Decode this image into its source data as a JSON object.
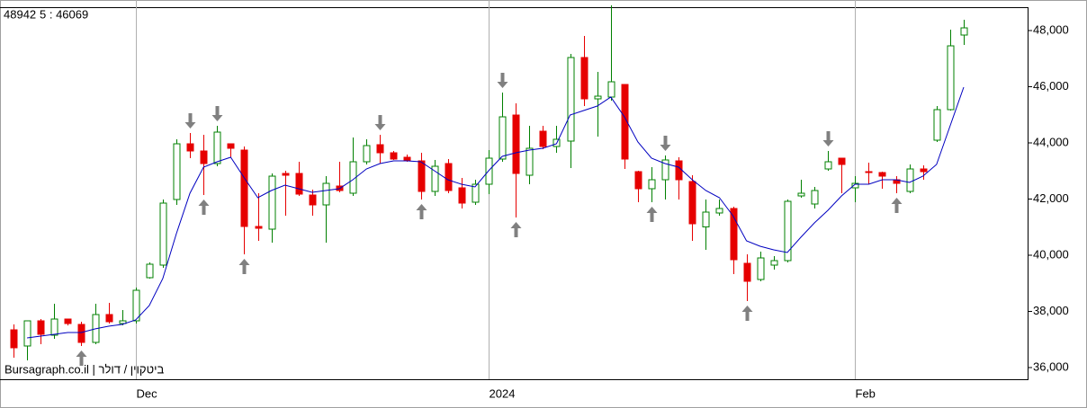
{
  "chart_data": {
    "type": "candlestick",
    "info_left": "48942",
    "ma_label": "5 : 46069",
    "footer": "Bursagraph.co.il | ביטקוין / דולר",
    "categories": [
      null,
      null,
      null,
      null,
      null,
      null,
      null,
      null,
      null,
      "Dec",
      null,
      null,
      null,
      null,
      null,
      null,
      null,
      null,
      null,
      null,
      null,
      null,
      null,
      null,
      null,
      null,
      null,
      null,
      null,
      null,
      null,
      null,
      null,
      null,
      null,
      "2024",
      null,
      null,
      null,
      null,
      null,
      null,
      null,
      null,
      null,
      null,
      null,
      null,
      null,
      null,
      null,
      null,
      null,
      null,
      null,
      null,
      null,
      null,
      null,
      null,
      null,
      null,
      "Feb",
      null,
      null,
      null,
      null,
      null,
      null,
      null,
      null
    ],
    "open": [
      37344,
      36768,
      37664,
      37152,
      37728,
      37536,
      36896,
      37888,
      37568,
      37664,
      39200,
      39648,
      41984,
      43968,
      43712,
      43264,
      43968,
      43744,
      41024,
      40928,
      42912,
      42912,
      42144,
      41792,
      42464,
      42208,
      43328,
      43936,
      43648,
      43488,
      43360,
      42272,
      43264,
      42400,
      41888,
      42528,
      43424,
      44992,
      42848,
      44416,
      43872,
      44064,
      47040,
      45568,
      45632,
      46080,
      42976,
      42368,
      42688,
      43360,
      42624,
      41008,
      41504,
      41664,
      39712,
      39136,
      39648,
      39808,
      42112,
      41824,
      43072,
      43456,
      42400,
      42976,
      42944,
      42688,
      42272,
      43072,
      44096,
      45184,
      47840
    ],
    "high": [
      37536,
      37664,
      37728,
      38272,
      37728,
      37632,
      38272,
      38304,
      38048,
      38848,
      39744,
      41984,
      44128,
      44352,
      44288,
      44608,
      43968,
      43872,
      42208,
      42912,
      43008,
      43328,
      42336,
      42816,
      43328,
      44192,
      44128,
      44288,
      43712,
      43584,
      43648,
      43392,
      43424,
      42752,
      42688,
      43744,
      45792,
      45408,
      44608,
      44608,
      44608,
      47168,
      47808,
      46528,
      48900,
      46080,
      43008,
      43136,
      43552,
      43488,
      42848,
      41984,
      41984,
      41728,
      40032,
      40128,
      39968,
      41984,
      42688,
      42432,
      43712,
      43456,
      42816,
      43296,
      42976,
      42816,
      43232,
      43200,
      45312,
      48032,
      48384
    ],
    "low": [
      36352,
      36256,
      36832,
      37024,
      37500,
      36768,
      36832,
      37568,
      37504,
      37568,
      39168,
      39552,
      41792,
      43456,
      42144,
      43168,
      43488,
      40032,
      40512,
      40448,
      41408,
      42112,
      41408,
      40448,
      42240,
      42112,
      43232,
      43264,
      43392,
      43328,
      41984,
      42112,
      42208,
      41664,
      41792,
      42176,
      43328,
      41344,
      42528,
      43776,
      43648,
      43104,
      45312,
      44224,
      45504,
      43072,
      41888,
      41888,
      41984,
      41984,
      40512,
      40192,
      41408,
      39328,
      38368,
      39072,
      39488,
      39744,
      42048,
      41664,
      43008,
      42208,
      41888,
      42528,
      42368,
      42208,
      42208,
      42688,
      44032,
      45152,
      47488
    ],
    "close": [
      36704,
      37664,
      37184,
      37728,
      37568,
      36896,
      37888,
      37632,
      37664,
      38752,
      39680,
      41856,
      43968,
      43712,
      43264,
      44384,
      43808,
      41024,
      40960,
      42816,
      42848,
      42176,
      41792,
      42560,
      42304,
      43328,
      43904,
      43648,
      43424,
      43360,
      42272,
      43168,
      42304,
      41856,
      42528,
      43456,
      44928,
      42912,
      43808,
      43872,
      44128,
      47040,
      45568,
      45664,
      46176,
      43424,
      42368,
      42688,
      43392,
      42688,
      41120,
      41536,
      41664,
      39840,
      39072,
      39904,
      39808,
      41920,
      42208,
      42304,
      43328,
      43232,
      42560,
      42944,
      42816,
      42560,
      43072,
      42976,
      45184,
      47456,
      48096
    ],
    "ma": [
      null,
      37056,
      37120,
      37184,
      37248,
      37248,
      37376,
      37472,
      37536,
      37696,
      38208,
      39168,
      40768,
      42208,
      43136,
      43328,
      43488,
      42752,
      42048,
      42304,
      42496,
      42368,
      42240,
      42304,
      42368,
      42688,
      43072,
      43264,
      43360,
      43360,
      43328,
      43008,
      42688,
      42528,
      42432,
      43008,
      43520,
      43648,
      43744,
      43808,
      43968,
      44992,
      45152,
      45312,
      45632,
      44928,
      44032,
      43456,
      43264,
      43136,
      42688,
      42304,
      42048,
      41408,
      40512,
      40320,
      40192,
      40096,
      40640,
      41152,
      41600,
      42112,
      42528,
      42528,
      42688,
      42688,
      42592,
      42816,
      43232,
      44608,
      45984
    ],
    "signals_down": [
      13,
      15,
      27,
      36,
      48,
      60
    ],
    "signals_up": [
      5,
      14,
      17,
      30,
      37,
      47,
      54,
      65
    ],
    "up_color": "#008000",
    "down_color": "#e60000",
    "ma_color": "#0000c0",
    "arrow_color": "#808080",
    "ylim": [
      35584,
      48832
    ],
    "yticks": [
      {
        "value": 36000,
        "label": "36,000"
      },
      {
        "value": 38000,
        "label": "38,000"
      },
      {
        "value": 40000,
        "label": "40,000"
      },
      {
        "value": 42000,
        "label": "42,000"
      },
      {
        "value": 44000,
        "label": "44,000"
      },
      {
        "value": 46000,
        "label": "46,000"
      },
      {
        "value": 48000,
        "label": "48,000"
      }
    ],
    "grid": false
  }
}
